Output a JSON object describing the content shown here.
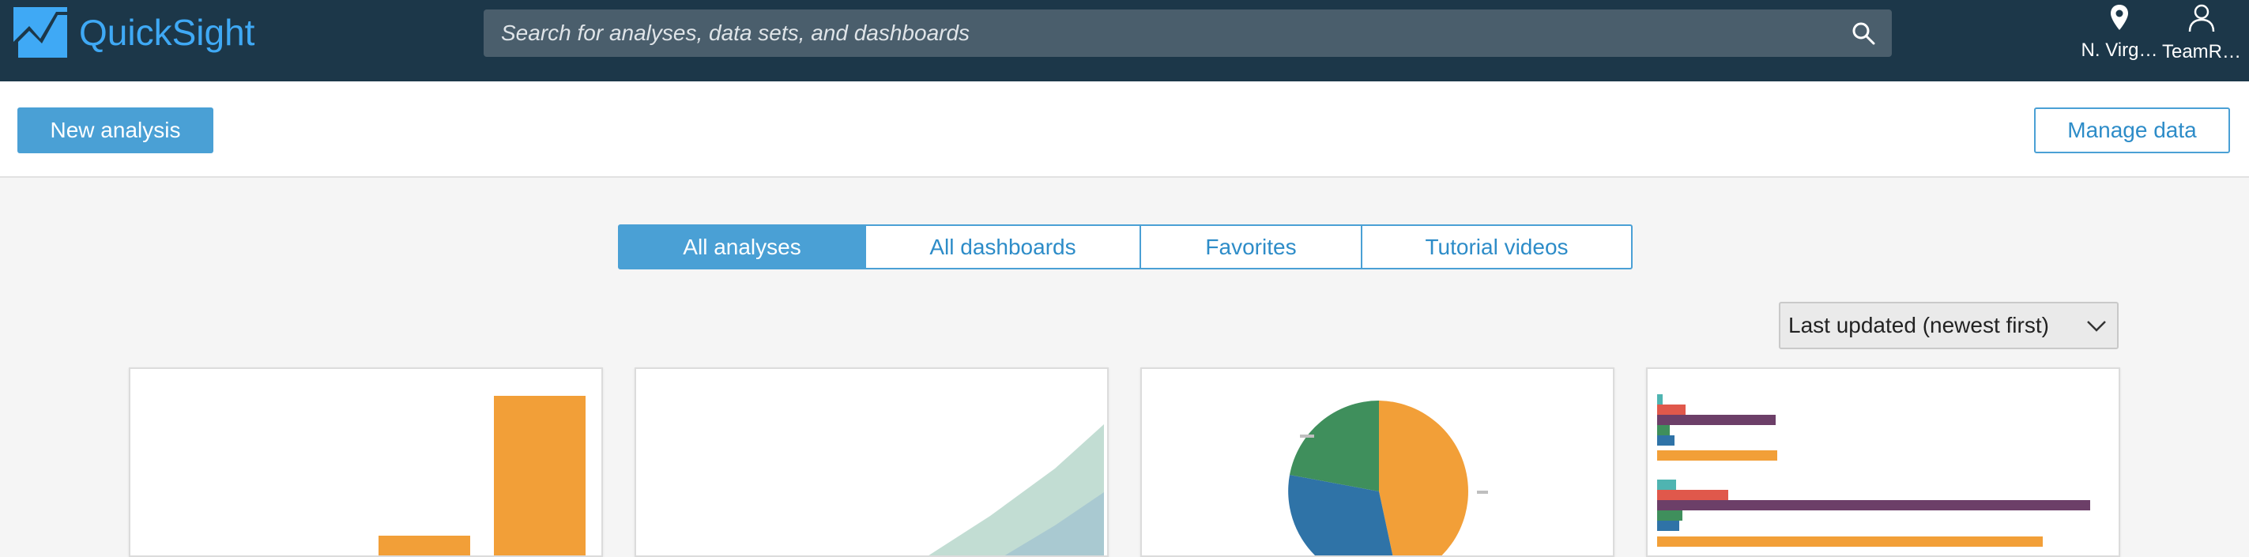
{
  "app": {
    "name": "QuickSight",
    "brand_color": "#3fa9f5",
    "topbar_color": "#1c3749"
  },
  "search": {
    "placeholder": "Search for analyses, data sets, and dashboards",
    "icon": "search-icon"
  },
  "nav": {
    "region": {
      "label": "N. Virg…",
      "icon": "location-pin-icon"
    },
    "user": {
      "label": "TeamR…",
      "icon": "user-icon"
    }
  },
  "actions": {
    "new_analysis": "New analysis",
    "manage_data": "Manage data"
  },
  "tabs": [
    {
      "label": "All analyses",
      "active": true
    },
    {
      "label": "All dashboards",
      "active": false
    },
    {
      "label": "Favorites",
      "active": false
    },
    {
      "label": "Tutorial videos",
      "active": false
    }
  ],
  "sort": {
    "selected": "Last updated (newest first)",
    "icon": "chevron-down-icon"
  },
  "cards": [
    {
      "thumbnail": "bar-chart-thumbnail",
      "colors": [
        "#f29f38"
      ]
    },
    {
      "thumbnail": "area-chart-thumbnail",
      "colors": [
        "#c2ddd3",
        "#a9c9d1"
      ]
    },
    {
      "thumbnail": "pie-chart-thumbnail",
      "colors": [
        "#f29f38",
        "#2f73a7",
        "#3f8f5c"
      ]
    },
    {
      "thumbnail": "horizontal-bar-chart-thumbnail",
      "colors": [
        "#4fb4b1",
        "#e0584b",
        "#6c3f68",
        "#3f8f5c",
        "#2f73a7",
        "#f29f38"
      ]
    }
  ],
  "accent_color": "#4aa0d5"
}
